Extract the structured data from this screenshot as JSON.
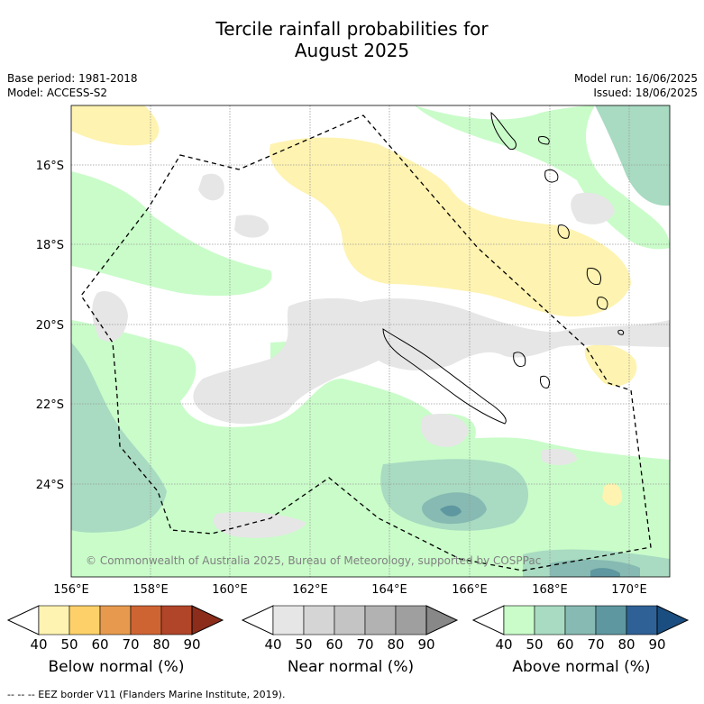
{
  "title_line1": "Tercile rainfall probabilities for",
  "title_line2": "August 2025",
  "base_period": "Base period: 1981-2018",
  "model": "Model: ACCESS-S2",
  "model_run": "Model run: 16/06/2025",
  "issued": "Issued: 18/06/2025",
  "copyright": "© Commonwealth of Australia 2025, Bureau of Meteorology, supported by COSPPac",
  "lon_ticks": [
    "156°E",
    "158°E",
    "160°E",
    "162°E",
    "164°E",
    "166°E",
    "168°E",
    "170°E"
  ],
  "lat_ticks": [
    "16°S",
    "18°S",
    "20°S",
    "22°S",
    "24°S"
  ],
  "colorbars": [
    {
      "label": "Below normal (%)",
      "ticks": [
        "40",
        "50",
        "60",
        "70",
        "80",
        "90"
      ],
      "colors": [
        "#fef3b0",
        "#fdd06a",
        "#e79a4d",
        "#cf6433",
        "#b0452a",
        "#8c2d1c"
      ]
    },
    {
      "label": "Near normal (%)",
      "ticks": [
        "40",
        "50",
        "60",
        "70",
        "80",
        "90"
      ],
      "colors": [
        "#e6e6e6",
        "#d5d5d5",
        "#c4c4c4",
        "#b2b2b2",
        "#9f9f9f",
        "#888888"
      ]
    },
    {
      "label": "Above normal (%)",
      "ticks": [
        "40",
        "50",
        "60",
        "70",
        "80",
        "90"
      ],
      "colors": [
        "#c9fcc9",
        "#a8dbc1",
        "#87bab2",
        "#5e97a0",
        "#2f6196",
        "#1b4e80"
      ]
    }
  ],
  "legend_footer": "-- -- -- EEZ border V11 (Flanders Marine Institute, 2019)."
}
